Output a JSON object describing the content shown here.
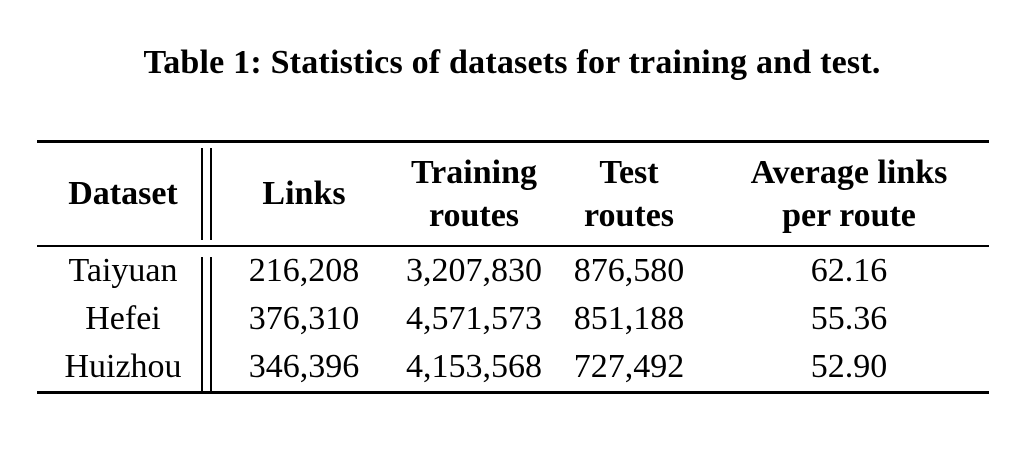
{
  "caption": "Table 1: Statistics of datasets for training and test.",
  "colors": {
    "text": "#000000",
    "background": "#ffffff",
    "rule": "#000000"
  },
  "table": {
    "headers": [
      {
        "line1": "Dataset",
        "line2": ""
      },
      {
        "line1": "Links",
        "line2": ""
      },
      {
        "line1": "Training",
        "line2": "routes"
      },
      {
        "line1": "Test",
        "line2": "routes"
      },
      {
        "line1": "Average links",
        "line2": "per route"
      }
    ],
    "rows": [
      {
        "dataset": "Taiyuan",
        "links": "216,208",
        "training_routes": "3,207,830",
        "test_routes": "876,580",
        "avg_links_per_route": "62.16"
      },
      {
        "dataset": "Hefei",
        "links": "376,310",
        "training_routes": "4,571,573",
        "test_routes": "851,188",
        "avg_links_per_route": "55.36"
      },
      {
        "dataset": "Huizhou",
        "links": "346,396",
        "training_routes": "4,153,568",
        "test_routes": "727,492",
        "avg_links_per_route": "52.90"
      }
    ]
  }
}
